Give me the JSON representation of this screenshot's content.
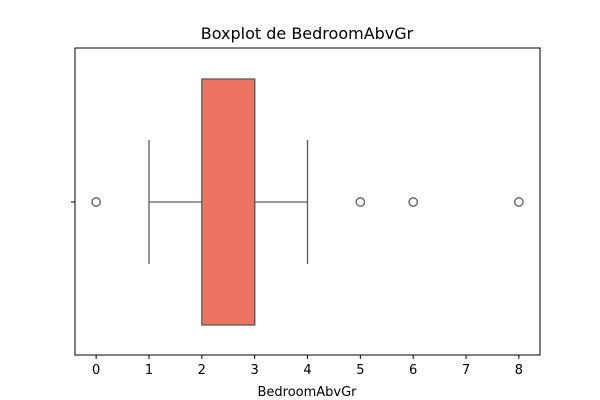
{
  "chart_data": {
    "type": "boxplot",
    "title": "Boxplot de BedroomAbvGr",
    "xlabel": "BedroomAbvGr",
    "ylabel": "",
    "xlim": [
      -0.4,
      8.4
    ],
    "xticks": [
      "0",
      "1",
      "2",
      "3",
      "4",
      "5",
      "6",
      "7",
      "8"
    ],
    "grid": false,
    "box": {
      "whisker_low": 1,
      "q1": 2,
      "median": 3,
      "q3": 3,
      "whisker_high": 4
    },
    "outliers": [
      0,
      5,
      6,
      8
    ],
    "colors": {
      "box_fill": "#ec7460",
      "lines": "#5a5a5a"
    }
  }
}
